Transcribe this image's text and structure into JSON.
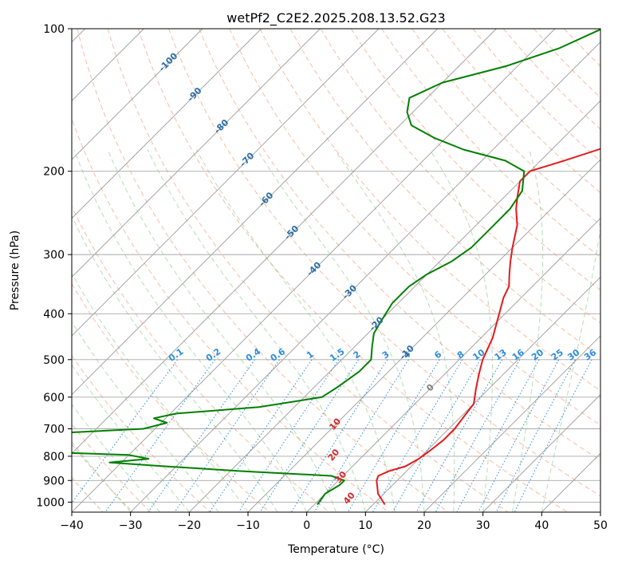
{
  "chart_data": {
    "type": "line",
    "title": "wetPf2_C2E2.2025.208.13.52.G23",
    "xlabel": "Temperature (°C)",
    "ylabel": "Pressure (hPa)",
    "xlim": [
      -40,
      50
    ],
    "ylim": [
      1050,
      100
    ],
    "y_scale": "log",
    "skew": "45deg",
    "grid": true,
    "x_ticks": [
      -40,
      -30,
      -20,
      -10,
      0,
      10,
      20,
      30,
      40,
      50
    ],
    "y_ticks": [
      100,
      200,
      300,
      400,
      500,
      600,
      700,
      800,
      900,
      1000
    ],
    "colors": {
      "temperature": "#e41a1c",
      "dewpoint": "#008000",
      "isotherm": "#9a9a9a",
      "isobar": "#a8a8a8",
      "dry_adiabat": "#f4a582",
      "moist_adiabat": "#74c476",
      "mixing_ratio": "#2b8cdf",
      "saturation_vapor": "#d4b896",
      "isotherm_label": "#2c6da6",
      "dry_label": "#d62728"
    },
    "isotherm_labels": [
      "-100",
      "-90",
      "-80",
      "-70",
      "-60",
      "-50",
      "-40",
      "-30",
      "-20",
      "-10",
      "0"
    ],
    "isotherm_label_values": [
      -100,
      -90,
      -80,
      -70,
      -60,
      -50,
      -40,
      -30,
      -20,
      -10,
      0
    ],
    "mixing_ratio_labels": [
      "0.1",
      "0.2",
      "0.4",
      "0.6",
      "1",
      "1.5",
      "2",
      "3",
      "4",
      "6",
      "8",
      "10",
      "13",
      "16",
      "20",
      "25",
      "30",
      "36"
    ],
    "mixing_ratio_values": [
      0.1,
      0.2,
      0.4,
      0.6,
      1,
      1.5,
      2,
      3,
      4,
      6,
      8,
      10,
      13,
      16,
      20,
      25,
      30,
      36
    ],
    "dry_labels": [
      "10",
      "20",
      "30",
      "40"
    ],
    "dry_label_values": [
      10,
      20,
      30,
      40
    ],
    "series": [
      {
        "key": "temperature",
        "points": [
          [
            1012,
            12
          ],
          [
            960,
            9
          ],
          [
            900,
            6.5
          ],
          [
            880,
            6
          ],
          [
            860,
            7
          ],
          [
            840,
            9
          ],
          [
            810,
            10
          ],
          [
            780,
            10.5
          ],
          [
            740,
            11
          ],
          [
            700,
            11
          ],
          [
            660,
            10.5
          ],
          [
            620,
            10
          ],
          [
            580,
            8
          ],
          [
            540,
            6
          ],
          [
            500,
            4
          ],
          [
            450,
            2
          ],
          [
            400,
            -1
          ],
          [
            370,
            -3
          ],
          [
            350,
            -4
          ],
          [
            330,
            -6
          ],
          [
            310,
            -8
          ],
          [
            290,
            -10
          ],
          [
            260,
            -13
          ],
          [
            240,
            -16
          ],
          [
            225,
            -18
          ],
          [
            210,
            -20
          ],
          [
            200,
            -20
          ],
          [
            190,
            -16
          ],
          [
            175,
            -10
          ],
          [
            160,
            -4
          ],
          [
            145,
            -1
          ],
          [
            130,
            1
          ],
          [
            120,
            3
          ],
          [
            110,
            5
          ],
          [
            100,
            8
          ]
        ]
      },
      {
        "key": "dewpoint",
        "points": [
          [
            1012,
            0.5
          ],
          [
            960,
            0
          ],
          [
            920,
            1
          ],
          [
            900,
            1
          ],
          [
            880,
            -2
          ],
          [
            860,
            -18
          ],
          [
            840,
            -32
          ],
          [
            825,
            -42
          ],
          [
            810,
            -36
          ],
          [
            795,
            -40
          ],
          [
            780,
            -60
          ],
          [
            730,
            -70
          ],
          [
            700,
            -42
          ],
          [
            680,
            -39
          ],
          [
            665,
            -42
          ],
          [
            650,
            -39
          ],
          [
            630,
            -26
          ],
          [
            600,
            -17
          ],
          [
            570,
            -16
          ],
          [
            530,
            -15
          ],
          [
            500,
            -15
          ],
          [
            470,
            -17
          ],
          [
            440,
            -19
          ],
          [
            410,
            -20
          ],
          [
            380,
            -21
          ],
          [
            350,
            -21
          ],
          [
            330,
            -20
          ],
          [
            310,
            -18
          ],
          [
            290,
            -17
          ],
          [
            260,
            -17
          ],
          [
            240,
            -17
          ],
          [
            220,
            -18
          ],
          [
            200,
            -21
          ],
          [
            190,
            -26
          ],
          [
            180,
            -35
          ],
          [
            170,
            -42
          ],
          [
            160,
            -48
          ],
          [
            150,
            -51
          ],
          [
            140,
            -53
          ],
          [
            130,
            -50
          ],
          [
            120,
            -42
          ],
          [
            110,
            -36
          ],
          [
            100,
            -32
          ]
        ]
      }
    ]
  }
}
